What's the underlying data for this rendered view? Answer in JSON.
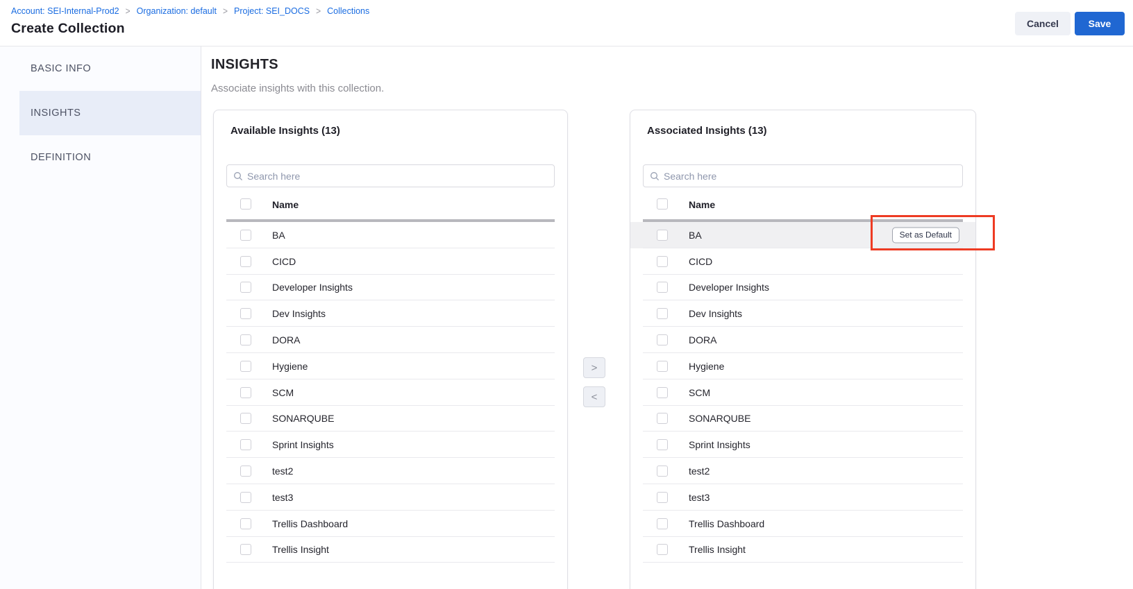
{
  "header": {
    "breadcrumb": [
      "Account: SEI-Internal-Prod2",
      "Organization: default",
      "Project: SEI_DOCS",
      "Collections"
    ],
    "separator": ">",
    "title": "Create Collection",
    "cancel_label": "Cancel",
    "save_label": "Save"
  },
  "sidebar": {
    "items": [
      {
        "label": "BASIC INFO",
        "active": false
      },
      {
        "label": "INSIGHTS",
        "active": true
      },
      {
        "label": "DEFINITION",
        "active": false
      }
    ]
  },
  "main": {
    "heading": "INSIGHTS",
    "subheading": "Associate insights with this collection.",
    "transfer": {
      "move_right_label": ">",
      "move_left_label": "<"
    }
  },
  "panels": [
    {
      "id": "available",
      "title": "Available Insights (13)",
      "search_placeholder": "Search here",
      "name_header": "Name",
      "rows": [
        "BA",
        "CICD",
        "Developer Insights",
        "Dev Insights",
        "DORA",
        "Hygiene",
        "SCM",
        "SONARQUBE",
        "Sprint Insights",
        "test2",
        "test3",
        "Trellis Dashboard",
        "Trellis Insight"
      ],
      "highlighted_row": null,
      "row_action_label": null
    },
    {
      "id": "associated",
      "title": "Associated Insights (13)",
      "search_placeholder": "Search here",
      "name_header": "Name",
      "rows": [
        "BA",
        "CICD",
        "Developer Insights",
        "Dev Insights",
        "DORA",
        "Hygiene",
        "SCM",
        "SONARQUBE",
        "Sprint Insights",
        "test2",
        "test3",
        "Trellis Dashboard",
        "Trellis Insight"
      ],
      "highlighted_row": "BA",
      "row_action_label": "Set as Default"
    }
  ],
  "annotation": {
    "shape": "rectangle",
    "color": "#ee3b23"
  },
  "colors": {
    "link_blue": "#1a6ce1",
    "save_blue": "#2067d2",
    "red_annotation": "#ee3b23",
    "sidebar_active_bg": "#e8edf8",
    "row_highlight_bg": "#f0f0f2",
    "placeholder": "#8f97ad"
  }
}
